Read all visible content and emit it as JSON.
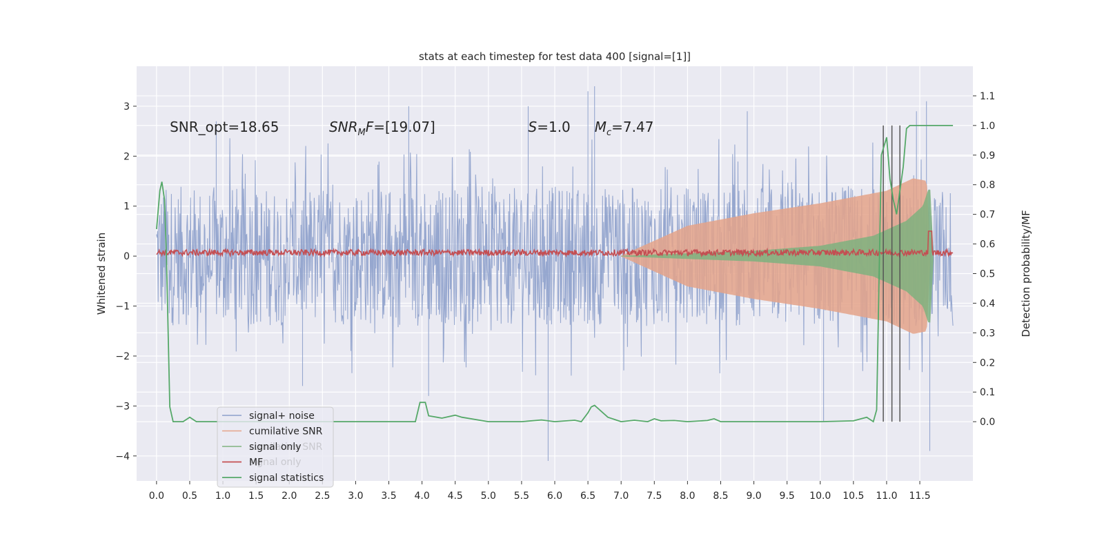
{
  "chart_data": {
    "type": "line",
    "title": "stats at each timestep for test data 400 [signal=[1]]",
    "xlabel": "",
    "ylabel": "Whitened strain",
    "y2label": "Detection probability/MF",
    "xlim": [
      -0.3,
      12.3
    ],
    "ylim": [
      -4.5,
      3.8
    ],
    "y2lim": [
      -0.2,
      1.2
    ],
    "x_ticks": [
      0.0,
      0.5,
      1.0,
      1.5,
      2.0,
      2.5,
      3.0,
      3.5,
      4.0,
      4.5,
      5.0,
      5.5,
      6.0,
      6.5,
      7.0,
      7.5,
      8.0,
      8.5,
      9.0,
      9.5,
      10.0,
      10.5,
      11.0,
      11.5
    ],
    "x_tick_labels": [
      "0.0",
      "0.5",
      "1.0",
      "1.5",
      "2.0",
      "2.5",
      "3.0",
      "3.5",
      "4.0",
      "4.5",
      "5.0",
      "5.5",
      "6.0",
      "6.5",
      "7.0",
      "7.5",
      "8.0",
      "8.5",
      "9.0",
      "9.5",
      "10.0",
      "10.5",
      "11.0",
      "11.5"
    ],
    "y_ticks": [
      3,
      2,
      1,
      0,
      -1,
      -2,
      -3,
      -4
    ],
    "y_tick_labels": [
      "3",
      "2",
      "1",
      "0",
      "−1",
      "−2",
      "−3",
      "−4"
    ],
    "y2_ticks": [
      1.1,
      1.0,
      0.9,
      0.8,
      0.7,
      0.6,
      0.5,
      0.4,
      0.3,
      0.2,
      0.1,
      0.0
    ],
    "y2_tick_labels": [
      "1.1",
      "1.0",
      "0.9",
      "0.8",
      "0.7",
      "0.6",
      "0.5",
      "0.4",
      "0.3",
      "0.2",
      "0.1",
      "0.0"
    ],
    "grid": true,
    "legend_position": "lower-left",
    "background": "#eaeaf2",
    "annotations": [
      {
        "text": "SNR_opt=18.65",
        "x": 0.2,
        "y": 2.6
      },
      {
        "text": "SNR_MF=[19.07]",
        "x": 2.6,
        "y": 2.6
      },
      {
        "text": "S=1.0",
        "x": 5.6,
        "y": 2.6
      },
      {
        "text": "M_c=7.47",
        "x": 6.6,
        "y": 2.6
      }
    ],
    "vlines_y2": {
      "x": [
        10.95,
        11.08,
        11.2
      ],
      "y2_range": [
        0.0,
        1.0
      ],
      "color": "#555555"
    },
    "series": [
      {
        "name": "signal+ noise",
        "axis": "left",
        "color": "#8da0cb",
        "t_range": [
          0.0,
          12.0
        ],
        "envelope_abs": [
          [
            0.0,
            1.4
          ],
          [
            6.0,
            1.4
          ],
          [
            12.0,
            1.4
          ]
        ],
        "spikes": [
          [
            0.9,
            2.7
          ],
          [
            2.2,
            -2.6
          ],
          [
            3.8,
            3.0
          ],
          [
            5.6,
            3.0
          ],
          [
            5.9,
            -4.1
          ],
          [
            6.6,
            3.4
          ],
          [
            6.5,
            3.3
          ],
          [
            10.05,
            -3.3
          ],
          [
            11.45,
            2.9
          ],
          [
            11.6,
            3.1
          ],
          [
            11.65,
            -3.9
          ],
          [
            4.1,
            -2.8
          ],
          [
            8.9,
            2.9
          ]
        ]
      },
      {
        "name": "cumilative SNR",
        "axis": "left",
        "color": "#e5a48a",
        "envelope_abs": [
          [
            7.0,
            0.0
          ],
          [
            7.5,
            0.3
          ],
          [
            8.0,
            0.6
          ],
          [
            9.0,
            0.85
          ],
          [
            10.0,
            1.05
          ],
          [
            11.0,
            1.3
          ],
          [
            11.4,
            1.55
          ],
          [
            11.6,
            1.5
          ],
          [
            11.65,
            0.2
          ]
        ]
      },
      {
        "name": "signal only",
        "axis": "left",
        "color": "#7fb27f",
        "envelope_abs": [
          [
            7.0,
            0.0
          ],
          [
            8.0,
            0.05
          ],
          [
            9.0,
            0.1
          ],
          [
            10.0,
            0.2
          ],
          [
            10.8,
            0.4
          ],
          [
            11.3,
            0.7
          ],
          [
            11.55,
            1.0
          ],
          [
            11.65,
            1.4
          ],
          [
            11.7,
            0.1
          ]
        ]
      },
      {
        "name": "MF",
        "axis": "left",
        "color": "#c44e52",
        "t_range": [
          0.0,
          12.0
        ],
        "base": 0.07,
        "noise": 0.06,
        "peak": [
          11.65,
          0.5
        ]
      },
      {
        "name": "signal statistics",
        "axis": "right",
        "color": "#55a868",
        "x": [
          0.0,
          0.05,
          0.08,
          0.12,
          0.15,
          0.2,
          0.25,
          0.3,
          0.4,
          0.5,
          0.6,
          0.7,
          1.0,
          1.5,
          2.0,
          2.5,
          3.0,
          3.5,
          3.9,
          3.97,
          4.05,
          4.1,
          4.3,
          4.5,
          4.6,
          5.0,
          5.5,
          5.8,
          6.0,
          6.3,
          6.4,
          6.5,
          6.55,
          6.6,
          6.8,
          7.0,
          7.2,
          7.4,
          7.5,
          7.6,
          7.8,
          8.0,
          8.3,
          8.4,
          8.5,
          9.0,
          10.0,
          10.5,
          10.7,
          10.8,
          10.85,
          10.92,
          11.0,
          11.05,
          11.1,
          11.15,
          11.25,
          11.3,
          11.35,
          11.45,
          12.0
        ],
        "y": [
          0.65,
          0.78,
          0.81,
          0.75,
          0.55,
          0.05,
          0.0,
          0.0,
          0.0,
          0.015,
          0.0,
          0.0,
          0.0,
          0.0,
          0.0,
          0.0,
          0.0,
          0.0,
          0.0,
          0.065,
          0.065,
          0.02,
          0.012,
          0.022,
          0.015,
          0.0,
          0.0,
          0.006,
          0.0,
          0.005,
          0.0,
          0.03,
          0.05,
          0.055,
          0.015,
          0.0,
          0.005,
          0.0,
          0.01,
          0.003,
          0.004,
          0.0,
          0.004,
          0.01,
          0.0,
          0.0,
          0.0,
          0.003,
          0.015,
          0.0,
          0.04,
          0.9,
          0.96,
          0.82,
          0.75,
          0.7,
          0.86,
          0.99,
          1.0,
          1.0,
          1.0
        ]
      }
    ],
    "legend": [
      {
        "label": "signal+ noise",
        "color": "#8da0cb",
        "width": 1.5
      },
      {
        "label": "cumilative SNR",
        "color": "#e5a48a",
        "width": 1.5
      },
      {
        "label": "signal only",
        "color": "#7fb27f",
        "width": 1.5
      },
      {
        "label": "MF",
        "color": "#c44e52",
        "width": 1.8
      },
      {
        "label": "signal statistics",
        "color": "#55a868",
        "width": 1.8
      }
    ],
    "ghost_legend": [
      "cumilative SNR",
      "signal only"
    ]
  }
}
